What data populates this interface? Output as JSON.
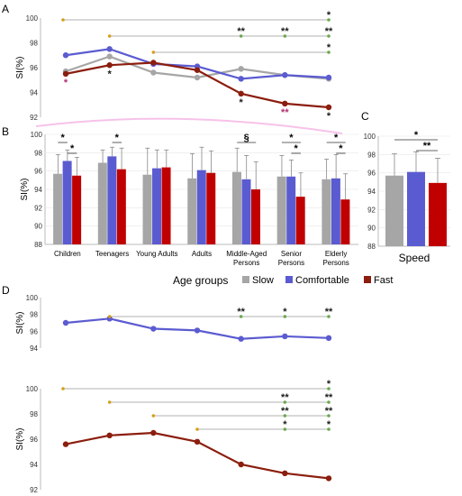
{
  "colors": {
    "slow": "#a6a6a6",
    "comfortable": "#5b5bd1",
    "fast": "#8b1e0e",
    "fast_bar": "#c00000",
    "bracket": "#6aa84f",
    "star": "#1a1a1a",
    "star_pink": "#b03070",
    "ghost": "#f2a8e0"
  },
  "legend": {
    "title": "Age groups",
    "items": [
      "Slow",
      "Comfortable",
      "Fast"
    ]
  },
  "panels": {
    "a": "A",
    "b": "B",
    "c": "C",
    "d": "D"
  },
  "chart_data": [
    {
      "panel": "A",
      "type": "line",
      "ylabel": "SI(%)",
      "ylim": [
        92,
        100
      ],
      "yticks": [
        "92",
        "94",
        "96",
        "98",
        "100"
      ],
      "categories": [
        "Children",
        "Teenagers",
        "Young Adults",
        "Adults",
        "Middle-Aged Persons",
        "Senior Persons",
        "Elderly Persons"
      ],
      "series": [
        {
          "name": "Slow",
          "values": [
            95.7,
            96.9,
            95.6,
            95.2,
            95.9,
            95.4,
            95.1
          ]
        },
        {
          "name": "Comfortable",
          "values": [
            97.0,
            97.5,
            96.3,
            96.1,
            95.1,
            95.4,
            95.2
          ]
        },
        {
          "name": "Fast",
          "values": [
            95.5,
            96.2,
            96.4,
            95.8,
            93.9,
            93.1,
            92.8
          ]
        }
      ],
      "brackets": [
        {
          "from": 0,
          "marks": [
            {
              "to": 6,
              "text": "*"
            }
          ]
        },
        {
          "from": 1,
          "marks": [
            {
              "to": 4,
              "text": "**"
            },
            {
              "to": 5,
              "text": "**"
            },
            {
              "to": 6,
              "text": "**"
            }
          ]
        },
        {
          "from": 2,
          "marks": [
            {
              "to": 6,
              "text": "*"
            }
          ]
        }
      ],
      "point_stars": [
        {
          "series": "Fast",
          "index": 0,
          "text": "*",
          "color": "pink"
        },
        {
          "series": "Fast",
          "index": 1,
          "text": "*",
          "color": "dark"
        },
        {
          "series": "Fast",
          "index": 4,
          "text": "*",
          "color": "dark"
        },
        {
          "series": "Fast",
          "index": 5,
          "text": "**",
          "color": "pink"
        },
        {
          "series": "Fast",
          "index": 6,
          "text": "*",
          "color": "dark"
        }
      ]
    },
    {
      "panel": "B",
      "type": "bar",
      "ylabel": "SI(%)",
      "ylim": [
        88,
        100
      ],
      "yticks": [
        "88",
        "90",
        "92",
        "94",
        "96",
        "98",
        "100"
      ],
      "categories": [
        "Children",
        "Teenagers",
        "Young Adults",
        "Adults",
        "Middle-Aged Persons",
        "Senior Persons",
        "Elderly Persons"
      ],
      "series": [
        {
          "name": "Slow",
          "values": [
            95.7,
            96.9,
            95.6,
            95.2,
            95.9,
            95.4,
            95.1
          ],
          "errors": [
            2.1,
            1.4,
            2.9,
            2.7,
            2.6,
            2.3,
            2.2
          ]
        },
        {
          "name": "Comfortable",
          "values": [
            97.1,
            97.6,
            96.3,
            96.1,
            95.1,
            95.4,
            95.2
          ],
          "errors": [
            1.2,
            1.0,
            2.0,
            2.5,
            2.6,
            1.8,
            2.6
          ]
        },
        {
          "name": "Fast",
          "values": [
            95.5,
            96.2,
            96.4,
            95.8,
            94.0,
            93.2,
            92.9
          ],
          "errors": [
            2.0,
            2.3,
            1.9,
            2.4,
            3.0,
            2.6,
            2.8
          ]
        }
      ],
      "annotations": [
        {
          "group": 0,
          "from": 0,
          "to": 1,
          "text": "*",
          "level": 0
        },
        {
          "group": 0,
          "from": 1,
          "to": 2,
          "text": "*",
          "level": 1
        },
        {
          "group": 1,
          "from": 1,
          "to": 2,
          "text": "*",
          "level": 0
        },
        {
          "group": 4,
          "from": 0,
          "to": 2,
          "text": "§",
          "level": 0
        },
        {
          "group": 5,
          "from": 0,
          "to": 2,
          "text": "*",
          "level": 0
        },
        {
          "group": 5,
          "from": 1,
          "to": 2,
          "text": "*",
          "level": 1
        },
        {
          "group": 6,
          "from": 0,
          "to": 2,
          "text": "*",
          "level": 0
        },
        {
          "group": 6,
          "from": 1,
          "to": 2,
          "text": "*",
          "level": 1
        }
      ]
    },
    {
      "panel": "C",
      "type": "bar",
      "xlabel": "Speed",
      "ylim": [
        88,
        100
      ],
      "yticks": [
        "88",
        "90",
        "92",
        "94",
        "96",
        "98",
        "100"
      ],
      "categories": [
        "Slow",
        "Comfortable",
        "Fast"
      ],
      "values": [
        95.7,
        96.1,
        94.9
      ],
      "errors": [
        2.4,
        2.2,
        2.7
      ],
      "annotations": [
        {
          "from": 0,
          "to": 2,
          "text": "*",
          "level": 0
        },
        {
          "from": 1,
          "to": 2,
          "text": "**",
          "level": 1
        }
      ]
    },
    {
      "panel": "D",
      "type": "line",
      "ylabel": "SI(%)",
      "ylim": [
        94,
        100
      ],
      "yticks": [
        "94",
        "96",
        "98",
        "100"
      ],
      "series": [
        {
          "name": "Comfortable",
          "values": [
            97.0,
            97.5,
            96.3,
            96.1,
            95.1,
            95.4,
            95.2
          ]
        }
      ],
      "brackets": [
        {
          "from": 1,
          "marks": [
            {
              "to": 4,
              "text": "**"
            },
            {
              "to": 5,
              "text": "*"
            },
            {
              "to": 6,
              "text": "**"
            }
          ]
        }
      ]
    },
    {
      "panel": "D",
      "type": "line",
      "ylabel": "SI(%)",
      "ylim": [
        92,
        100
      ],
      "yticks": [
        "92",
        "94",
        "96",
        "98",
        "100"
      ],
      "series": [
        {
          "name": "Fast",
          "values": [
            95.6,
            96.3,
            96.5,
            95.8,
            94.0,
            93.3,
            92.9
          ]
        }
      ],
      "brackets": [
        {
          "from": 0,
          "marks": [
            {
              "to": 6,
              "text": "*"
            }
          ]
        },
        {
          "from": 1,
          "marks": [
            {
              "to": 5,
              "text": "**"
            },
            {
              "to": 6,
              "text": "**"
            }
          ]
        },
        {
          "from": 2,
          "marks": [
            {
              "to": 5,
              "text": "**"
            },
            {
              "to": 6,
              "text": "**"
            }
          ]
        },
        {
          "from": 3,
          "marks": [
            {
              "to": 5,
              "text": "*"
            },
            {
              "to": 6,
              "text": "*"
            }
          ]
        }
      ]
    }
  ]
}
